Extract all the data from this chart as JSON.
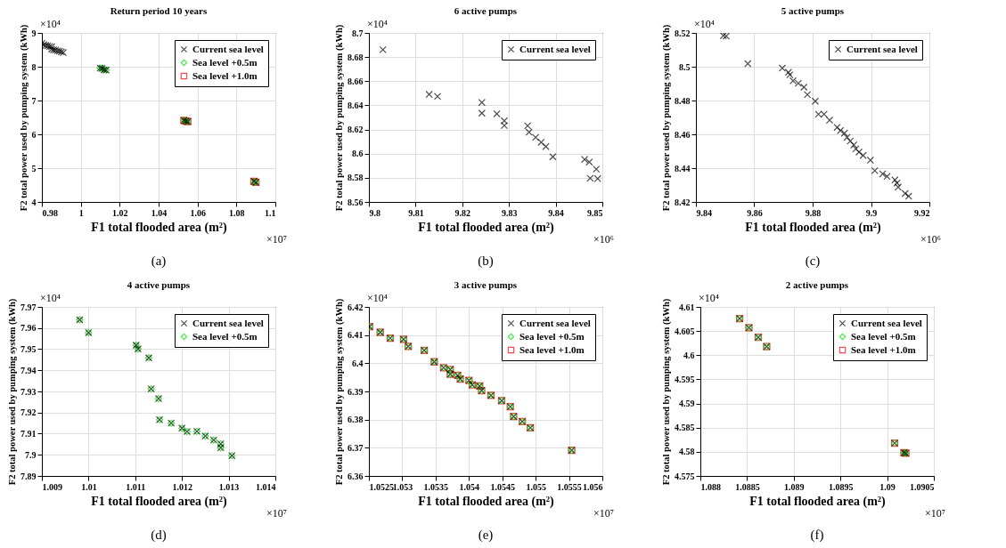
{
  "chart_data": [
    {
      "type": "scatter",
      "title": "Return period 10 years",
      "xlabel": "F1 total flooded area (m²)",
      "ylabel": "F2 total power used by pumping system (kWh)",
      "xlim": [
        0.98,
        1.1
      ],
      "ylim": [
        4,
        9
      ],
      "xticks": [
        0.98,
        1,
        1.02,
        1.04,
        1.06,
        1.08,
        1.1
      ],
      "yticks": [
        4,
        5,
        6,
        7,
        8,
        9
      ],
      "grid": true,
      "legend": "top right",
      "annotations": [
        "×10⁴",
        "×10⁷",
        "(a)"
      ],
      "series": [
        {
          "name": "Current sea level",
          "color": "#000000",
          "marker": "cross",
          "x": [
            0.98,
            0.981,
            0.982,
            0.983,
            0.984,
            0.985,
            0.985,
            0.986,
            0.987,
            0.988,
            0.989,
            0.99,
            0.991,
            1.01,
            1.011,
            1.012,
            1.013,
            1.053,
            1.054,
            1.055,
            1.089,
            1.09
          ],
          "values": [
            8.69,
            8.65,
            8.63,
            8.62,
            8.6,
            8.59,
            8.52,
            8.5,
            8.49,
            8.47,
            8.46,
            8.44,
            8.42,
            7.96,
            7.95,
            7.91,
            7.9,
            6.41,
            6.39,
            6.38,
            4.61,
            4.58
          ]
        },
        {
          "name": "Sea level +0.5m",
          "color": "#00e000",
          "marker": "diamond",
          "x": [
            1.01,
            1.011,
            1.012,
            1.013,
            1.053,
            1.054,
            1.055,
            1.089,
            1.09
          ],
          "values": [
            7.96,
            7.95,
            7.92,
            7.9,
            6.41,
            6.39,
            6.38,
            4.61,
            4.58
          ]
        },
        {
          "name": "Sea level +1.0m",
          "color": "#ff0000",
          "marker": "square",
          "x": [
            1.053,
            1.054,
            1.055,
            1.089,
            1.09
          ],
          "values": [
            6.41,
            6.39,
            6.38,
            4.61,
            4.58
          ]
        }
      ]
    },
    {
      "type": "scatter",
      "title": "6 active pumps",
      "xlabel": "F1 total flooded area (m²)",
      "ylabel": "F2 total power used by pumping system (kWh)",
      "xlim": [
        9.8,
        9.85
      ],
      "ylim": [
        8.56,
        8.7
      ],
      "xticks": [
        9.8,
        9.81,
        9.82,
        9.83,
        9.84,
        9.85
      ],
      "yticks": [
        8.56,
        8.58,
        8.6,
        8.62,
        8.64,
        8.66,
        8.68,
        8.7
      ],
      "grid": true,
      "legend": "top right",
      "annotations": [
        "×10⁴",
        "×10⁶",
        "(b)"
      ],
      "series": [
        {
          "name": "Current sea level",
          "color": "#000000",
          "marker": "cross",
          "x": [
            9.803,
            9.8129,
            9.8147,
            9.8242,
            9.8242,
            9.8274,
            9.829,
            9.829,
            9.834,
            9.8343,
            9.8357,
            9.8369,
            9.8379,
            9.8394,
            9.8462,
            9.8472,
            9.8487,
            9.8474,
            9.849
          ],
          "values": [
            8.6861,
            8.6491,
            8.6474,
            8.6424,
            8.6335,
            8.633,
            8.6272,
            8.6233,
            8.6231,
            8.6178,
            8.6135,
            8.6094,
            8.6059,
            8.5974,
            8.5952,
            8.593,
            8.5872,
            8.5796,
            8.5793
          ]
        }
      ]
    },
    {
      "type": "scatter",
      "title": "5 active pumps",
      "xlabel": "F1 total flooded area (m²)",
      "ylabel": "F2 total power used by pumping system (kWh)",
      "xlim": [
        9.84,
        9.92
      ],
      "ylim": [
        8.42,
        8.52
      ],
      "xticks": [
        9.84,
        9.86,
        9.88,
        9.9,
        9.92
      ],
      "yticks": [
        8.42,
        8.44,
        8.46,
        8.48,
        8.5,
        8.52
      ],
      "grid": true,
      "legend": "top right",
      "annotations": [
        "×10⁴",
        "×10⁶",
        "(c)"
      ],
      "series": [
        {
          "name": "Current sea level",
          "color": "#000000",
          "marker": "cross",
          "x": [
            9.8494,
            9.8504,
            9.8578,
            9.8696,
            9.8717,
            9.8722,
            9.8733,
            9.8751,
            9.877,
            9.8782,
            9.8809,
            9.882,
            9.8839,
            9.8858,
            9.8884,
            9.8895,
            9.8909,
            9.8918,
            9.8929,
            9.8941,
            9.8948,
            9.8959,
            9.8973,
            9.8998,
            9.9013,
            9.904,
            9.9055,
            9.9082,
            9.9089,
            9.9093,
            9.9117,
            9.9129
          ],
          "values": [
            8.5184,
            8.5181,
            8.5018,
            8.4992,
            8.4967,
            8.4952,
            8.4917,
            8.4902,
            8.4879,
            8.4835,
            8.4796,
            8.4719,
            8.4719,
            8.4684,
            8.4641,
            8.4622,
            8.4607,
            8.4582,
            8.456,
            8.4537,
            8.4514,
            8.4495,
            8.4475,
            8.4447,
            8.4385,
            8.4366,
            8.4351,
            8.433,
            8.4312,
            8.4288,
            8.425,
            8.4234
          ]
        }
      ]
    },
    {
      "type": "scatter",
      "title": "4 active pumps",
      "xlabel": "F1 total flooded area (m²)",
      "ylabel": "F2 total power used by pumping system (kWh)",
      "xlim": [
        1.009,
        1.014
      ],
      "ylim": [
        7.89,
        7.97
      ],
      "xticks": [
        1.009,
        1.01,
        1.011,
        1.012,
        1.013,
        1.014
      ],
      "yticks": [
        7.89,
        7.9,
        7.91,
        7.92,
        7.93,
        7.94,
        7.95,
        7.96,
        7.97
      ],
      "grid": true,
      "legend": "top right",
      "annotations": [
        "×10⁴",
        "×10⁷",
        "(d)"
      ],
      "series": [
        {
          "name": "Current sea level",
          "color": "#000000",
          "marker": "cross",
          "x": [
            1.00981,
            1.01,
            1.01102,
            1.01106,
            1.01129,
            1.01134,
            1.0115,
            1.01152,
            1.01177,
            1.012,
            1.01211,
            1.01232,
            1.0125,
            1.01268,
            1.01283,
            1.01283,
            1.01307
          ],
          "values": [
            7.9639,
            7.9578,
            7.9519,
            7.9501,
            7.9459,
            7.9312,
            7.9266,
            7.9166,
            7.915,
            7.9126,
            7.911,
            7.9111,
            7.9089,
            7.907,
            7.9052,
            7.9033,
            7.8996
          ]
        },
        {
          "name": "Sea level +0.5m",
          "color": "#00e000",
          "marker": "diamond",
          "x": [
            1.00981,
            1.01,
            1.01102,
            1.01106,
            1.01129,
            1.01134,
            1.0115,
            1.01152,
            1.01177,
            1.012,
            1.01211,
            1.01232,
            1.0125,
            1.01268,
            1.01283,
            1.01283,
            1.01307
          ],
          "values": [
            7.9639,
            7.9578,
            7.9519,
            7.9501,
            7.9459,
            7.9312,
            7.9266,
            7.9166,
            7.915,
            7.9126,
            7.911,
            7.9111,
            7.9089,
            7.907,
            7.9052,
            7.9033,
            7.8996
          ]
        }
      ]
    },
    {
      "type": "scatter",
      "title": "3 active pumps",
      "xlabel": "F1 total flooded area (m²)",
      "ylabel": "F2 total power used by pumping system (kWh)",
      "xlim": [
        1.0525,
        1.056
      ],
      "ylim": [
        6.36,
        6.42
      ],
      "xticks": [
        1.0525,
        1.053,
        1.0535,
        1.054,
        1.0545,
        1.055,
        1.0555,
        1.056
      ],
      "yticks": [
        6.36,
        6.37,
        6.38,
        6.39,
        6.4,
        6.41,
        6.42
      ],
      "grid": true,
      "legend": "top right",
      "annotations": [
        "×10⁴",
        "×10⁷",
        "(e)"
      ],
      "series": [
        {
          "name": "Current sea level",
          "color": "#000000",
          "marker": "cross",
          "x": [
            1.05251,
            1.05267,
            1.05282,
            1.05302,
            1.05309,
            1.05333,
            1.05348,
            1.05362,
            1.05372,
            1.05372,
            1.05383,
            1.05387,
            1.054,
            1.05405,
            1.05416,
            1.05419,
            1.05433,
            1.05449,
            1.05462,
            1.05467,
            1.0548,
            1.05492,
            1.05554
          ],
          "values": [
            6.413,
            6.411,
            6.4089,
            6.4085,
            6.406,
            6.4046,
            6.4005,
            6.3984,
            6.3978,
            6.3961,
            6.3957,
            6.3944,
            6.3939,
            6.3923,
            6.3919,
            6.3903,
            6.3886,
            6.3867,
            6.3846,
            6.3811,
            6.3793,
            6.3771,
            6.3691
          ]
        },
        {
          "name": "Sea level +0.5m",
          "color": "#00e000",
          "marker": "diamond",
          "x": [
            1.05251,
            1.05267,
            1.05282,
            1.05302,
            1.05309,
            1.05333,
            1.05348,
            1.05362,
            1.05372,
            1.05372,
            1.05383,
            1.05387,
            1.054,
            1.05405,
            1.05416,
            1.05419,
            1.05433,
            1.05449,
            1.05462,
            1.05467,
            1.0548,
            1.05492,
            1.05554
          ],
          "values": [
            6.413,
            6.411,
            6.4089,
            6.4085,
            6.406,
            6.4046,
            6.4005,
            6.3984,
            6.3978,
            6.3961,
            6.3957,
            6.3944,
            6.3939,
            6.3923,
            6.3919,
            6.3903,
            6.3886,
            6.3867,
            6.3846,
            6.3811,
            6.3793,
            6.3771,
            6.3691
          ]
        },
        {
          "name": "Sea level +1.0m",
          "color": "#ff0000",
          "marker": "square",
          "x": [
            1.05251,
            1.05267,
            1.05282,
            1.05302,
            1.05309,
            1.05333,
            1.05348,
            1.05362,
            1.05372,
            1.05372,
            1.05383,
            1.05387,
            1.054,
            1.05405,
            1.05416,
            1.05419,
            1.05433,
            1.05449,
            1.05462,
            1.05467,
            1.0548,
            1.05492,
            1.05554
          ],
          "values": [
            6.413,
            6.411,
            6.4089,
            6.4085,
            6.406,
            6.4046,
            6.4005,
            6.3984,
            6.3978,
            6.3961,
            6.3957,
            6.3944,
            6.3939,
            6.3923,
            6.3919,
            6.3903,
            6.3886,
            6.3867,
            6.3846,
            6.3811,
            6.3793,
            6.3771,
            6.3691
          ]
        }
      ]
    },
    {
      "type": "scatter",
      "title": "2 active pumps",
      "xlabel": "F1 total flooded area (m²)",
      "ylabel": "F2 total power used by pumping system (kWh)",
      "xlim": [
        1.088,
        1.0905
      ],
      "ylim": [
        4.575,
        4.61
      ],
      "xticks": [
        1.088,
        1.0885,
        1.089,
        1.0895,
        1.09,
        1.0905
      ],
      "yticks": [
        4.575,
        4.58,
        4.585,
        4.59,
        4.595,
        4.6,
        4.605,
        4.61
      ],
      "grid": true,
      "legend": "top right",
      "annotations": [
        "×10⁴",
        "×10⁷",
        "(f)"
      ],
      "series": [
        {
          "name": "Current sea level",
          "color": "#000000",
          "marker": "cross",
          "x": [
            1.08842,
            1.08852,
            1.08862,
            1.08871,
            1.09008,
            1.09018,
            1.0902
          ],
          "values": [
            4.6076,
            4.6057,
            4.6037,
            4.6018,
            4.5818,
            4.5798,
            4.5797
          ]
        },
        {
          "name": "Sea level +0.5m",
          "color": "#00e000",
          "marker": "diamond",
          "x": [
            1.08842,
            1.08852,
            1.08862,
            1.08871,
            1.09008,
            1.09018,
            1.0902
          ],
          "values": [
            4.6076,
            4.6057,
            4.6037,
            4.6018,
            4.5818,
            4.5798,
            4.5797
          ]
        },
        {
          "name": "Sea level +1.0m",
          "color": "#ff0000",
          "marker": "square",
          "x": [
            1.08842,
            1.08852,
            1.08862,
            1.08871,
            1.09008,
            1.09018,
            1.0902
          ],
          "values": [
            4.6076,
            4.6057,
            4.6037,
            4.6018,
            4.5818,
            4.5798,
            4.5797
          ]
        }
      ]
    }
  ]
}
